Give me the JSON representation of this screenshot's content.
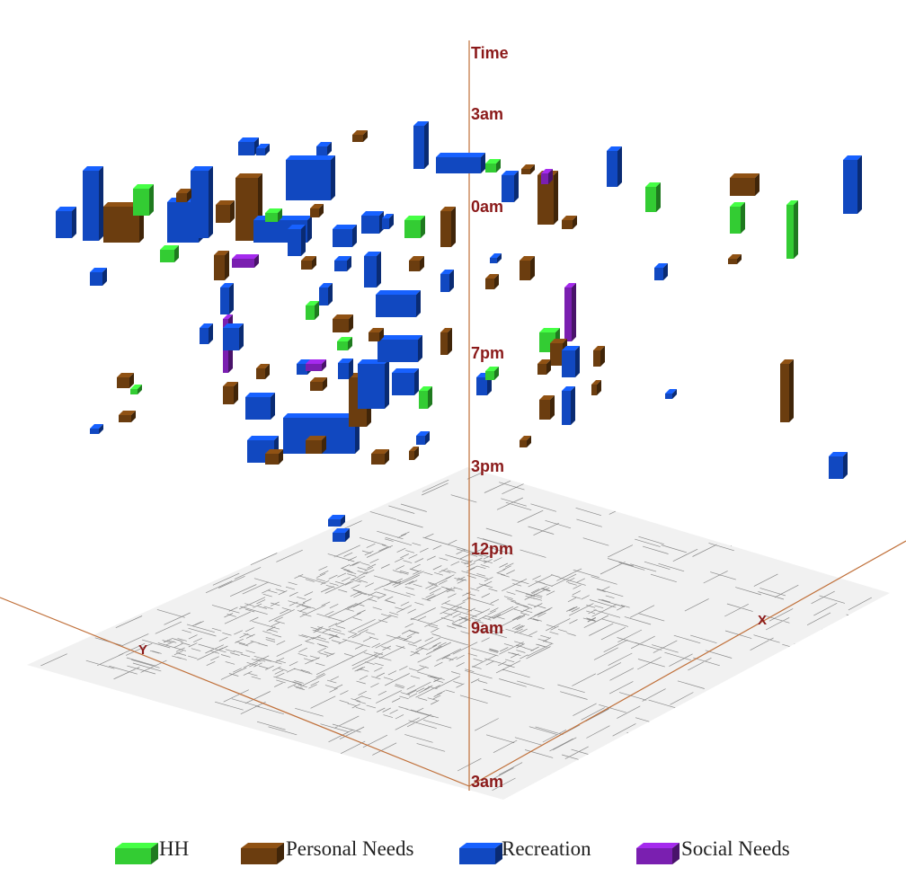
{
  "axes": {
    "time_label": "Time",
    "x_label": "X",
    "y_label": "Y",
    "time_ticks": [
      "3am",
      "9am",
      "12pm",
      "3pm",
      "7pm",
      "0am",
      "3am"
    ]
  },
  "legend": [
    {
      "label": "HH",
      "color": "#33cc33"
    },
    {
      "label": "Personal Needs",
      "color": "#6b3d0f"
    },
    {
      "label": "Recreation",
      "color": "#1148c0"
    },
    {
      "label": "Social Needs",
      "color": "#7a1fb0"
    }
  ]
}
